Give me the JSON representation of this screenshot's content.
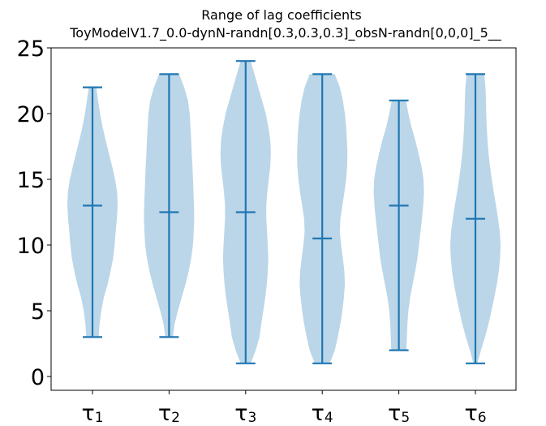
{
  "chart_data": {
    "type": "violin",
    "title": "Range of lag coefficients",
    "subtitle": "ToyModelV1.7_0.0-dynN-randn[0.3,0.3,0.3]_obsN-randn[0,0,0]_5__",
    "xlabel": "",
    "ylabel": "",
    "ylim": [
      0,
      25
    ],
    "yticks": [
      0,
      5,
      10,
      15,
      20,
      25
    ],
    "ytick_labels": [
      "0",
      "5",
      "10",
      "15",
      "20",
      "25"
    ],
    "categories": [
      {
        "base": "τ",
        "sub": "1"
      },
      {
        "base": "τ",
        "sub": "2"
      },
      {
        "base": "τ",
        "sub": "3"
      },
      {
        "base": "τ",
        "sub": "4"
      },
      {
        "base": "τ",
        "sub": "5"
      },
      {
        "base": "τ",
        "sub": "6"
      }
    ],
    "series": [
      {
        "min": 3,
        "max": 22,
        "median": 13,
        "density": [
          [
            3,
            0.25
          ],
          [
            4,
            0.28
          ],
          [
            5,
            0.35
          ],
          [
            6,
            0.45
          ],
          [
            7,
            0.6
          ],
          [
            8,
            0.72
          ],
          [
            9,
            0.82
          ],
          [
            10,
            0.88
          ],
          [
            11,
            0.92
          ],
          [
            12,
            0.97
          ],
          [
            13,
            1.0
          ],
          [
            14,
            0.98
          ],
          [
            15,
            0.9
          ],
          [
            16,
            0.78
          ],
          [
            17,
            0.65
          ],
          [
            18,
            0.52
          ],
          [
            19,
            0.4
          ],
          [
            20,
            0.3
          ],
          [
            21,
            0.22
          ],
          [
            22,
            0.15
          ]
        ]
      },
      {
        "min": 3,
        "max": 23,
        "median": 12.5,
        "density": [
          [
            3,
            0.15
          ],
          [
            4,
            0.22
          ],
          [
            5,
            0.35
          ],
          [
            6,
            0.5
          ],
          [
            7,
            0.65
          ],
          [
            8,
            0.78
          ],
          [
            9,
            0.88
          ],
          [
            10,
            0.95
          ],
          [
            11,
            0.98
          ],
          [
            12,
            1.0
          ],
          [
            13,
            0.99
          ],
          [
            14,
            0.97
          ],
          [
            15,
            0.95
          ],
          [
            16,
            0.93
          ],
          [
            17,
            0.9
          ],
          [
            18,
            0.88
          ],
          [
            19,
            0.85
          ],
          [
            20,
            0.82
          ],
          [
            21,
            0.75
          ],
          [
            22,
            0.6
          ],
          [
            23,
            0.4
          ]
        ]
      },
      {
        "min": 1,
        "max": 24,
        "median": 12.5,
        "density": [
          [
            1,
            0.2
          ],
          [
            2,
            0.4
          ],
          [
            3,
            0.55
          ],
          [
            4,
            0.62
          ],
          [
            5,
            0.7
          ],
          [
            6,
            0.78
          ],
          [
            7,
            0.84
          ],
          [
            8,
            0.88
          ],
          [
            9,
            0.9
          ],
          [
            10,
            0.88
          ],
          [
            11,
            0.85
          ],
          [
            12,
            0.82
          ],
          [
            13,
            0.82
          ],
          [
            14,
            0.86
          ],
          [
            15,
            0.92
          ],
          [
            16,
            0.98
          ],
          [
            17,
            1.0
          ],
          [
            18,
            0.98
          ],
          [
            19,
            0.9
          ],
          [
            20,
            0.8
          ],
          [
            21,
            0.65
          ],
          [
            22,
            0.5
          ],
          [
            23,
            0.35
          ],
          [
            24,
            0.2
          ]
        ]
      },
      {
        "min": 1,
        "max": 23,
        "median": 10.5,
        "density": [
          [
            1,
            0.3
          ],
          [
            2,
            0.5
          ],
          [
            3,
            0.62
          ],
          [
            4,
            0.72
          ],
          [
            5,
            0.8
          ],
          [
            6,
            0.86
          ],
          [
            7,
            0.9
          ],
          [
            8,
            0.88
          ],
          [
            9,
            0.82
          ],
          [
            10,
            0.75
          ],
          [
            11,
            0.7
          ],
          [
            12,
            0.72
          ],
          [
            13,
            0.8
          ],
          [
            14,
            0.88
          ],
          [
            15,
            0.95
          ],
          [
            16,
            0.99
          ],
          [
            17,
            1.0
          ],
          [
            18,
            0.98
          ],
          [
            19,
            0.95
          ],
          [
            20,
            0.9
          ],
          [
            21,
            0.82
          ],
          [
            22,
            0.7
          ],
          [
            23,
            0.5
          ]
        ]
      },
      {
        "min": 2,
        "max": 21,
        "median": 13,
        "density": [
          [
            2,
            0.3
          ],
          [
            3,
            0.32
          ],
          [
            4,
            0.34
          ],
          [
            5,
            0.38
          ],
          [
            6,
            0.45
          ],
          [
            7,
            0.55
          ],
          [
            8,
            0.65
          ],
          [
            9,
            0.74
          ],
          [
            10,
            0.8
          ],
          [
            11,
            0.86
          ],
          [
            12,
            0.92
          ],
          [
            13,
            0.97
          ],
          [
            14,
            1.0
          ],
          [
            15,
            0.98
          ],
          [
            16,
            0.9
          ],
          [
            17,
            0.78
          ],
          [
            18,
            0.65
          ],
          [
            19,
            0.5
          ],
          [
            20,
            0.38
          ],
          [
            21,
            0.28
          ]
        ]
      },
      {
        "min": 1,
        "max": 23,
        "median": 12,
        "density": [
          [
            1,
            0.08
          ],
          [
            2,
            0.22
          ],
          [
            3,
            0.38
          ],
          [
            4,
            0.52
          ],
          [
            5,
            0.64
          ],
          [
            6,
            0.75
          ],
          [
            7,
            0.85
          ],
          [
            8,
            0.93
          ],
          [
            9,
            0.98
          ],
          [
            10,
            1.0
          ],
          [
            11,
            0.97
          ],
          [
            12,
            0.9
          ],
          [
            13,
            0.82
          ],
          [
            14,
            0.73
          ],
          [
            15,
            0.65
          ],
          [
            16,
            0.58
          ],
          [
            17,
            0.52
          ],
          [
            18,
            0.48
          ],
          [
            19,
            0.45
          ],
          [
            20,
            0.43
          ],
          [
            21,
            0.42
          ],
          [
            22,
            0.4
          ],
          [
            23,
            0.35
          ]
        ]
      }
    ],
    "colors": {
      "body": "#1f77b4",
      "line": "#1f77b4",
      "body_opacity": 0.3
    },
    "grid": false,
    "legend": "none"
  }
}
